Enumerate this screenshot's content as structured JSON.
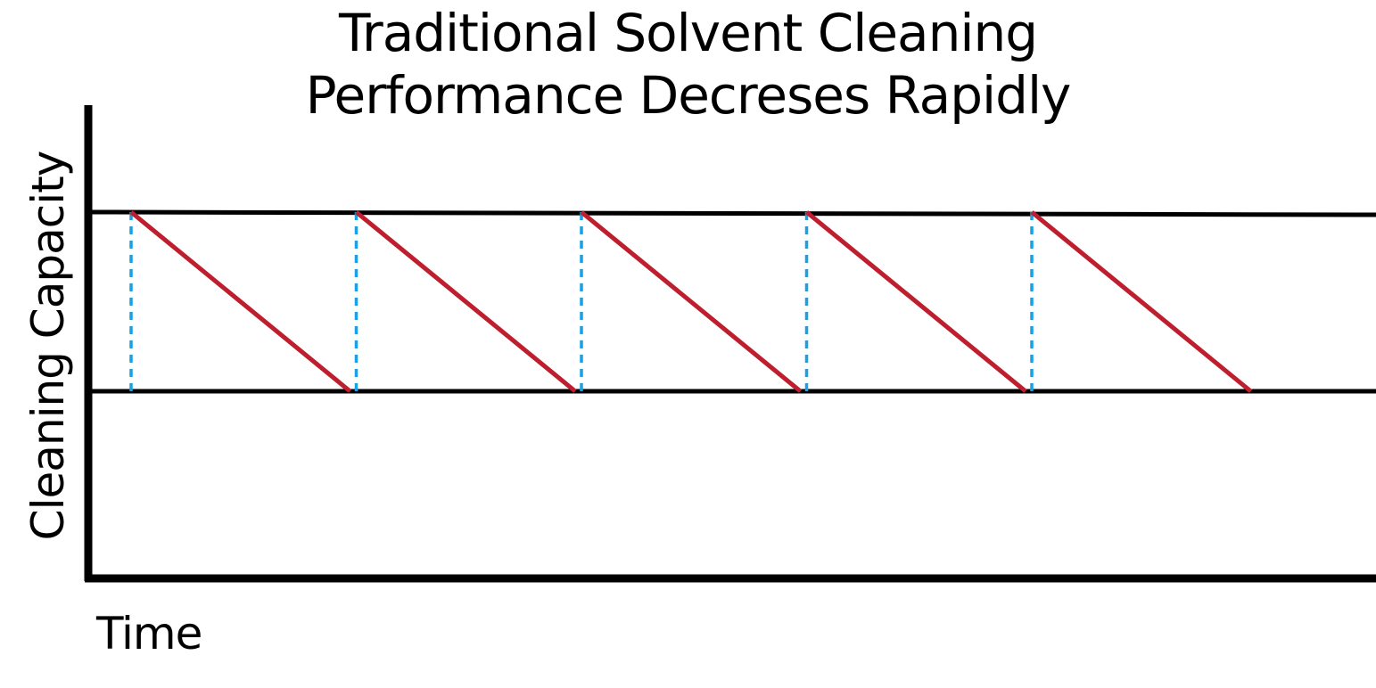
{
  "chart_data": {
    "type": "line",
    "title_lines": [
      "Traditional Solvent Cleaning",
      "Performance Decreses Rapidly"
    ],
    "xlabel": "Time",
    "ylabel": "Cleaning Capacity",
    "grid": false,
    "reference_levels": {
      "high": 1,
      "low": 0
    },
    "cycles": [
      {
        "start": 0,
        "end": 1
      },
      {
        "start": 1,
        "end": 2
      },
      {
        "start": 2,
        "end": 3
      },
      {
        "start": 3,
        "end": 4
      },
      {
        "start": 4,
        "end": 5
      }
    ],
    "colors": {
      "decline": "#be1e2d",
      "reset": "#1ba1e2",
      "axis": "#000000"
    }
  }
}
